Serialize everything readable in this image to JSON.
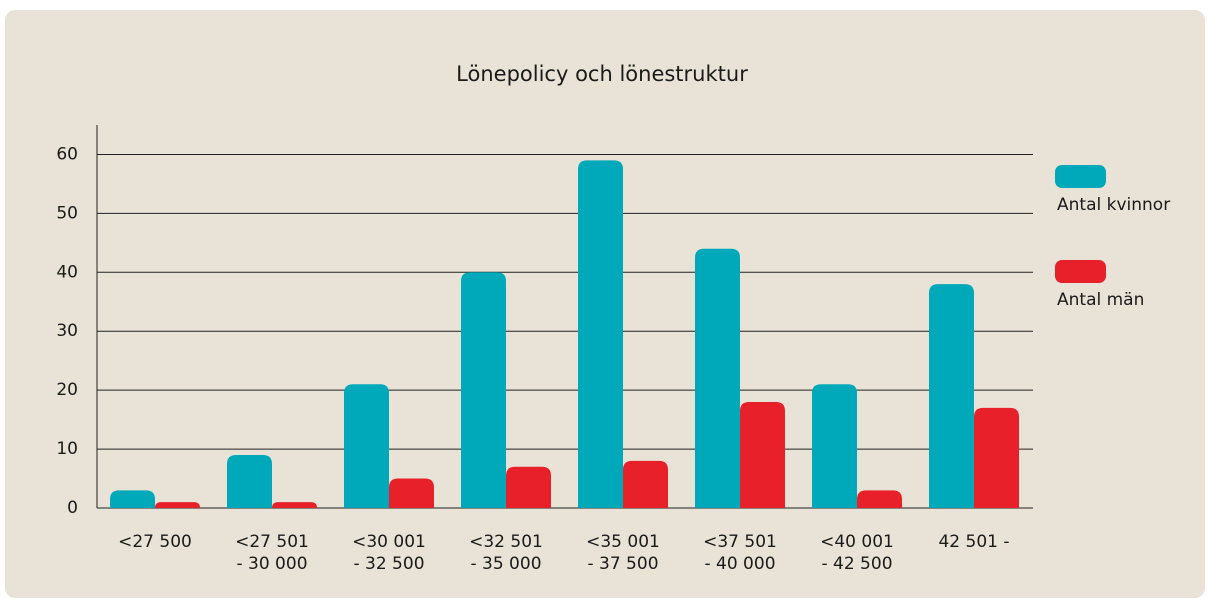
{
  "chart_data": {
    "type": "bar",
    "title": "Lönepolicy och lönestruktur",
    "categories": [
      [
        "<27 500"
      ],
      [
        "<27 501",
        "- 30 000"
      ],
      [
        "<30 001",
        "- 32 500"
      ],
      [
        "<32 501",
        "- 35 000"
      ],
      [
        "<35 001",
        "- 37 500"
      ],
      [
        "<37 501",
        "- 40 000"
      ],
      [
        "<40 001",
        "- 42 500"
      ],
      [
        "42 501 -"
      ]
    ],
    "series": [
      {
        "name": "Antal kvinnor",
        "color": "#00a9b9",
        "values": [
          3,
          9,
          21,
          40,
          59,
          44,
          21,
          38
        ]
      },
      {
        "name": "Antal män",
        "color": "#e8202a",
        "values": [
          1,
          1,
          5,
          7,
          8,
          18,
          3,
          17
        ]
      }
    ],
    "ylim": [
      0,
      65
    ],
    "yticks": [
      0,
      10,
      20,
      30,
      40,
      50,
      60
    ],
    "grid": true,
    "legend": "right"
  }
}
